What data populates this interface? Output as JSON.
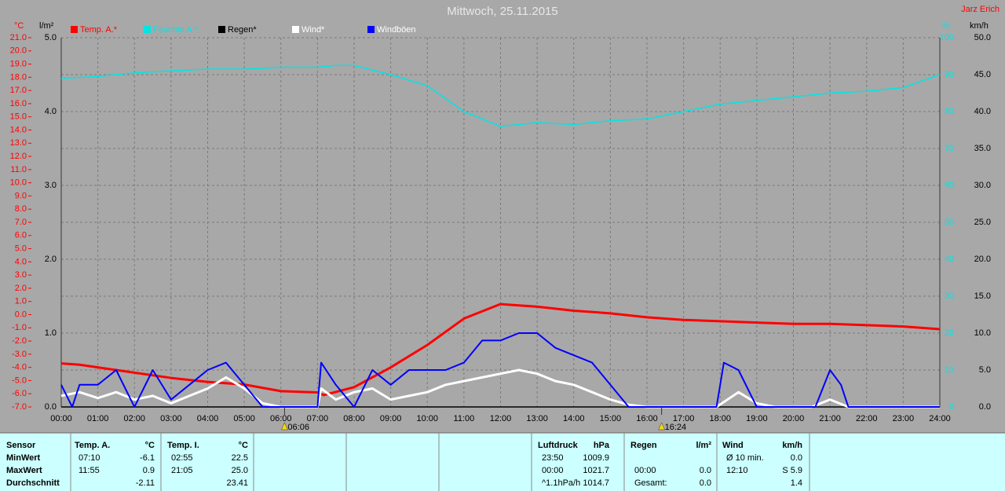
{
  "chart_data": {
    "type": "line",
    "title": "Mittwoch, 25.11.2015",
    "author": "Jarz Erich",
    "ylabel": "°C",
    "y2label": "l/m²",
    "y3label": "%",
    "y4label": "km/h",
    "xlim": [
      0,
      24
    ],
    "xticks": [
      {
        "value": 0,
        "label": "00:00"
      },
      {
        "value": 1,
        "label": "01:00"
      },
      {
        "value": 2,
        "label": "02:00"
      },
      {
        "value": 3,
        "label": "03:00"
      },
      {
        "value": 4,
        "label": "04:00"
      },
      {
        "value": 5,
        "label": "05:00"
      },
      {
        "value": 6,
        "label": "06:00"
      },
      {
        "value": 7,
        "label": "07:00"
      },
      {
        "value": 8,
        "label": "08:00"
      },
      {
        "value": 9,
        "label": "09:00"
      },
      {
        "value": 10,
        "label": "10:00"
      },
      {
        "value": 11,
        "label": "11:00"
      },
      {
        "value": 12,
        "label": "12:00"
      },
      {
        "value": 13,
        "label": "13:00"
      },
      {
        "value": 14,
        "label": "14:00"
      },
      {
        "value": 15,
        "label": "15:00"
      },
      {
        "value": 16,
        "label": "16:00"
      },
      {
        "value": 17,
        "label": "17:00"
      },
      {
        "value": 18,
        "label": "18:00"
      },
      {
        "value": 19,
        "label": "19:00"
      },
      {
        "value": 20,
        "label": "20:00"
      },
      {
        "value": 21,
        "label": "21:00"
      },
      {
        "value": 22,
        "label": "22:00"
      },
      {
        "value": 23,
        "label": "23:00"
      },
      {
        "value": 24,
        "label": "24:00"
      }
    ],
    "ylim": [
      -7,
      21
    ],
    "yticks": [
      {
        "value": -7,
        "label": "-7.0"
      },
      {
        "value": -6,
        "label": "-6.0"
      },
      {
        "value": -5,
        "label": "-5.0"
      },
      {
        "value": -4,
        "label": "-4.0"
      },
      {
        "value": -3,
        "label": "-3.0"
      },
      {
        "value": -2,
        "label": "-2.0"
      },
      {
        "value": -1,
        "label": "-1.0"
      },
      {
        "value": 0,
        "label": "0.0"
      },
      {
        "value": 1,
        "label": "1.0"
      },
      {
        "value": 2,
        "label": "2.0"
      },
      {
        "value": 3,
        "label": "3.0"
      },
      {
        "value": 4,
        "label": "4.0"
      },
      {
        "value": 5,
        "label": "5.0"
      },
      {
        "value": 6,
        "label": "6.0"
      },
      {
        "value": 7,
        "label": "7.0"
      },
      {
        "value": 8,
        "label": "8.0"
      },
      {
        "value": 9,
        "label": "9.0"
      },
      {
        "value": 10,
        "label": "10.0"
      },
      {
        "value": 11,
        "label": "11.0"
      },
      {
        "value": 12,
        "label": "12.0"
      },
      {
        "value": 13,
        "label": "13.0"
      },
      {
        "value": 14,
        "label": "14.0"
      },
      {
        "value": 15,
        "label": "15.0"
      },
      {
        "value": 16,
        "label": "16.0"
      },
      {
        "value": 17,
        "label": "17.0"
      },
      {
        "value": 18,
        "label": "18.0"
      },
      {
        "value": 19,
        "label": "19.0"
      },
      {
        "value": 20,
        "label": "20.0"
      },
      {
        "value": 21,
        "label": "21.0"
      }
    ],
    "y2lim": [
      0,
      5
    ],
    "y2ticks": [
      {
        "value": 0,
        "label": "0.0"
      },
      {
        "value": 1,
        "label": "1.0"
      },
      {
        "value": 2,
        "label": "2.0"
      },
      {
        "value": 3,
        "label": "3.0"
      },
      {
        "value": 4,
        "label": "4.0"
      },
      {
        "value": 5,
        "label": "5.0"
      }
    ],
    "y3lim": [
      0,
      100
    ],
    "y3ticks": [
      0,
      10,
      20,
      30,
      40,
      50,
      60,
      70,
      80,
      90,
      100
    ],
    "y4lim": [
      0,
      50
    ],
    "y4ticks": [
      {
        "value": 0,
        "label": "0.0"
      },
      {
        "value": 5,
        "label": "5.0"
      },
      {
        "value": 10,
        "label": "10.0"
      },
      {
        "value": 15,
        "label": "15.0"
      },
      {
        "value": 20,
        "label": "20.0"
      },
      {
        "value": 25,
        "label": "25.0"
      },
      {
        "value": 30,
        "label": "30.0"
      },
      {
        "value": 35,
        "label": "35.0"
      },
      {
        "value": 40,
        "label": "40.0"
      },
      {
        "value": 45,
        "label": "45.0"
      },
      {
        "value": 50,
        "label": "50.0"
      }
    ],
    "grid": true,
    "series": [
      {
        "name": "Temp. A.*",
        "color": "#ff0000",
        "legend_text_color": "#ff0000",
        "axis": "y",
        "width": 3,
        "x": [
          0,
          0.5,
          1,
          2,
          3,
          4,
          5,
          6,
          7,
          7.17,
          8,
          9,
          10,
          11,
          12,
          13,
          14,
          15,
          16,
          17,
          18,
          19,
          20,
          21,
          22,
          23,
          24
        ],
        "values": [
          -3.7,
          -3.8,
          -4.0,
          -4.4,
          -4.8,
          -5.1,
          -5.3,
          -5.8,
          -5.9,
          -6.1,
          -5.5,
          -4.0,
          -2.3,
          -0.3,
          0.8,
          0.6,
          0.3,
          0.1,
          -0.2,
          -0.4,
          -0.5,
          -0.6,
          -0.7,
          -0.7,
          -0.8,
          -0.9,
          -1.1
        ]
      },
      {
        "name": "Feuchte A.*",
        "color": "#00e5e5",
        "legend_text_color": "#00e5e5",
        "axis": "y3",
        "width": 1.5,
        "x": [
          0,
          1,
          2,
          3,
          4,
          5,
          6,
          7,
          7.5,
          8,
          9,
          10,
          11,
          12,
          13,
          14,
          15,
          16,
          17,
          18,
          19,
          20,
          21,
          22,
          23,
          24
        ],
        "values": [
          89,
          89.5,
          90.5,
          91,
          91.5,
          91.5,
          92,
          92,
          92.5,
          92.5,
          90,
          87,
          80,
          76,
          77,
          76.5,
          77.5,
          78,
          80,
          82,
          83,
          84,
          85,
          85.5,
          86.5,
          90
        ]
      },
      {
        "name": "Regen*",
        "color": "#000000",
        "legend_text_color": "#000000",
        "axis": "y2",
        "width": 1.5,
        "x": [
          0,
          24
        ],
        "values": [
          0,
          0
        ]
      },
      {
        "name": "Wind*",
        "color": "#ffffff",
        "legend_text_color": "#ffffff",
        "axis": "y4",
        "width": 3,
        "x": [
          0,
          0.5,
          1,
          1.5,
          2,
          2.5,
          3,
          3.5,
          4,
          4.5,
          5,
          5.5,
          6,
          7,
          7.1,
          7.5,
          8,
          8.5,
          9,
          9.5,
          10,
          10.5,
          11,
          11.5,
          12,
          12.5,
          13,
          13.5,
          14,
          14.5,
          15,
          15.5,
          16,
          17,
          17.9,
          18.5,
          19,
          19.5,
          20.5,
          21,
          21.5,
          24
        ],
        "values": [
          1.5,
          2,
          1.2,
          2,
          1,
          1.5,
          0.5,
          1.5,
          2.5,
          4,
          2.5,
          0.5,
          0,
          0,
          2.5,
          1,
          2,
          2.5,
          1,
          1.5,
          2,
          3,
          3.5,
          4,
          4.5,
          5,
          4.5,
          3.5,
          3,
          2,
          1,
          0.3,
          0,
          0,
          0,
          2,
          0.5,
          0,
          0,
          1,
          0,
          0
        ]
      },
      {
        "name": "Windböen",
        "color": "#0000ff",
        "legend_text_color": "#ffffff",
        "axis": "y4",
        "width": 2,
        "x": [
          0,
          0.3,
          0.5,
          1,
          1.5,
          2,
          2.5,
          3,
          3.5,
          4,
          4.5,
          5,
          5.5,
          7,
          7.1,
          7.5,
          8,
          8.5,
          9,
          9.5,
          10,
          10.5,
          11,
          11.5,
          12,
          12.5,
          13,
          13.5,
          14,
          14.5,
          15,
          15.5,
          17.9,
          18.1,
          18.5,
          18.8,
          19,
          20.6,
          21,
          21.3,
          21.5,
          24
        ],
        "values": [
          3,
          0,
          3,
          3,
          5,
          0,
          5,
          1,
          3,
          5,
          6,
          3,
          0,
          0,
          6,
          3,
          0,
          5,
          3,
          5,
          5,
          5,
          6,
          9,
          9,
          10,
          10,
          8,
          7,
          6,
          3,
          0,
          0,
          6,
          5,
          2,
          0,
          0,
          5,
          3,
          0,
          0
        ]
      }
    ],
    "annotations": [
      {
        "x": 6.1,
        "label": "06:06"
      },
      {
        "x": 16.4,
        "label": "16:24"
      }
    ]
  },
  "summary": {
    "columns": [
      {
        "title": "Sensor",
        "rows": [
          {
            "value": "MinWert"
          },
          {
            "value": "MaxWert"
          },
          {
            "value": "Durchschnitt"
          }
        ]
      },
      {
        "title": "Temp. A.",
        "unit": "°C",
        "rows": [
          {
            "time": "07:10",
            "value": "-6.1"
          },
          {
            "time": "11:55",
            "value": "0.9"
          },
          {
            "value": "-2.11"
          }
        ]
      },
      {
        "title": "Temp. I.",
        "unit": "°C",
        "rows": [
          {
            "time": "02:55",
            "value": "22.5"
          },
          {
            "time": "21:05",
            "value": "25.0"
          },
          {
            "value": "23.41"
          }
        ]
      },
      {
        "title": "Luftdruck",
        "unit": "hPa",
        "rows": [
          {
            "time": "23:50",
            "value": "1009.9"
          },
          {
            "time": "00:00",
            "value": "1021.7"
          },
          {
            "time": "^1.1hPa/h",
            "value": "1014.7"
          }
        ]
      },
      {
        "title": "Regen",
        "unit": "l/m²",
        "rows": [
          {},
          {
            "time": "00:00",
            "value": "0.0"
          },
          {
            "time": "Gesamt:",
            "value": "0.0"
          }
        ]
      },
      {
        "title": "Wind",
        "unit": "km/h",
        "rows": [
          {
            "time": "Ø 10 min.",
            "value": "0.0"
          },
          {
            "time": "12:10",
            "value": "S 5.9"
          },
          {
            "value": "1.4"
          }
        ]
      }
    ]
  }
}
